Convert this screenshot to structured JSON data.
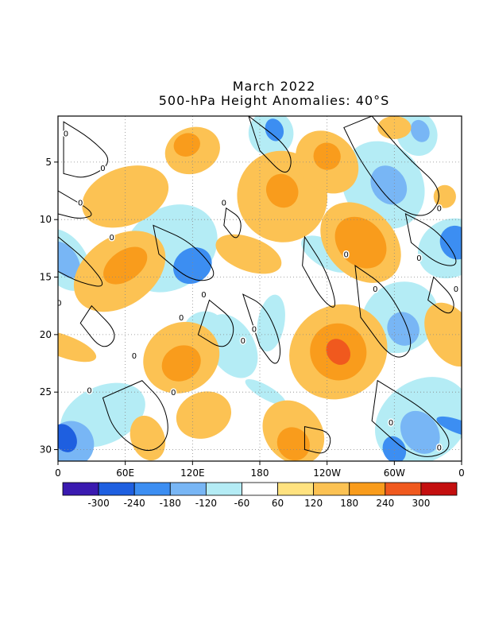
{
  "chart_data": {
    "type": "heatmap",
    "title": "March 2022",
    "subtitle": "500-hPa Height Anomalies: 40°S",
    "xlabel": "",
    "ylabel": "",
    "x_ticks": [
      "0",
      "60E",
      "120E",
      "180",
      "120W",
      "60W",
      "0"
    ],
    "y_ticks": [
      "5",
      "10",
      "15",
      "20",
      "25",
      "30"
    ],
    "xlim": [
      0,
      360
    ],
    "ylim": [
      1,
      31
    ],
    "y_inverted": true,
    "grid": true,
    "contour_label": "0",
    "colorbar": {
      "labels": [
        "-300",
        "-240",
        "-180",
        "-120",
        "-60",
        "60",
        "120",
        "180",
        "240",
        "300"
      ],
      "colors": [
        "#3a1ab0",
        "#1e5fe0",
        "#3c8ef2",
        "#78b6f5",
        "#b4ecf5",
        "#ffffff",
        "#ffe27f",
        "#fcc253",
        "#f99c1c",
        "#f0591e",
        "#c40f0f"
      ]
    },
    "bands": [
      {
        "level": -120,
        "x": 100,
        "y": 12.5,
        "dx": 45,
        "dy": 3.5,
        "tilt": -35
      },
      {
        "level": -240,
        "x": 120,
        "y": 14,
        "dx": 18,
        "dy": 1.5,
        "tilt": -35
      },
      {
        "level": -120,
        "x": 350,
        "y": 12.5,
        "dx": 30,
        "dy": 2.5,
        "tilt": -30
      },
      {
        "level": -240,
        "x": 355,
        "y": 12,
        "dx": 14,
        "dy": 1.5,
        "tilt": -30
      },
      {
        "level": -120,
        "x": 5,
        "y": 13.5,
        "dx": 20,
        "dy": 3,
        "tilt": -35
      },
      {
        "level": -180,
        "x": 6,
        "y": 13.5,
        "dx": 11,
        "dy": 1.8,
        "tilt": -35
      },
      {
        "level": -120,
        "x": 190,
        "y": 2.5,
        "dx": 20,
        "dy": 2,
        "tilt": -20
      },
      {
        "level": -240,
        "x": 193,
        "y": 2.2,
        "dx": 8,
        "dy": 1,
        "tilt": -20
      },
      {
        "level": -120,
        "x": 290,
        "y": 7,
        "dx": 35,
        "dy": 4,
        "tilt": -35
      },
      {
        "level": -180,
        "x": 295,
        "y": 7,
        "dx": 15,
        "dy": 1.8,
        "tilt": -35
      },
      {
        "level": -120,
        "x": 320,
        "y": 2.5,
        "dx": 18,
        "dy": 2,
        "tilt": -25
      },
      {
        "level": -180,
        "x": 323,
        "y": 2.3,
        "dx": 8,
        "dy": 1,
        "tilt": -25
      },
      {
        "level": -120,
        "x": 305,
        "y": 18.5,
        "dx": 35,
        "dy": 3,
        "tilt": -30
      },
      {
        "level": -180,
        "x": 308,
        "y": 19.5,
        "dx": 14,
        "dy": 1.5,
        "tilt": -30
      },
      {
        "level": -120,
        "x": 325,
        "y": 27.5,
        "dx": 45,
        "dy": 3.5,
        "tilt": -35
      },
      {
        "level": -180,
        "x": 323,
        "y": 28.5,
        "dx": 16,
        "dy": 2,
        "tilt": -35
      },
      {
        "level": -240,
        "x": 300,
        "y": 30,
        "dx": 10,
        "dy": 1.2,
        "tilt": -25
      },
      {
        "level": -240,
        "x": 357,
        "y": 28,
        "dx": 6,
        "dy": 2,
        "tilt": -70
      },
      {
        "level": -120,
        "x": 40,
        "y": 27,
        "dx": 40,
        "dy": 2.5,
        "tilt": -25
      },
      {
        "level": -180,
        "x": 12,
        "y": 29.5,
        "dx": 20,
        "dy": 2,
        "tilt": -30
      },
      {
        "level": -300,
        "x": 6,
        "y": 29,
        "dx": 10,
        "dy": 1.3,
        "tilt": -30
      },
      {
        "level": -120,
        "x": 130,
        "y": 19.5,
        "dx": 18,
        "dy": 1.5,
        "tilt": -15
      },
      {
        "level": -120,
        "x": 155,
        "y": 21,
        "dx": 20,
        "dy": 3,
        "tilt": -30
      },
      {
        "level": -120,
        "x": 190,
        "y": 19,
        "dx": 12,
        "dy": 2.5,
        "tilt": 10
      },
      {
        "level": -120,
        "x": 240,
        "y": 13,
        "dx": 12,
        "dy": 2.5,
        "tilt": -60
      },
      {
        "level": -120,
        "x": 185,
        "y": 25,
        "dx": 6,
        "dy": 2,
        "tilt": -60
      },
      {
        "level": 120,
        "x": 60,
        "y": 8,
        "dx": 40,
        "dy": 2.5,
        "tilt": -20
      },
      {
        "level": 120,
        "x": 120,
        "y": 4,
        "dx": 25,
        "dy": 2,
        "tilt": -20
      },
      {
        "level": 180,
        "x": 115,
        "y": 3.5,
        "dx": 12,
        "dy": 1,
        "tilt": -20
      },
      {
        "level": 120,
        "x": 55,
        "y": 14.5,
        "dx": 45,
        "dy": 3,
        "tilt": -35
      },
      {
        "level": 180,
        "x": 60,
        "y": 14,
        "dx": 22,
        "dy": 1.3,
        "tilt": -35
      },
      {
        "level": 120,
        "x": 200,
        "y": 8,
        "dx": 40,
        "dy": 4,
        "tilt": -30
      },
      {
        "level": 180,
        "x": 200,
        "y": 7.5,
        "dx": 14,
        "dy": 1.5,
        "tilt": -30
      },
      {
        "level": 120,
        "x": 240,
        "y": 5,
        "dx": 25,
        "dy": 3,
        "tilt": -45
      },
      {
        "level": 180,
        "x": 240,
        "y": 4.5,
        "dx": 12,
        "dy": 1.2,
        "tilt": -45
      },
      {
        "level": 120,
        "x": 270,
        "y": 12,
        "dx": 30,
        "dy": 4,
        "tilt": -45
      },
      {
        "level": 180,
        "x": 270,
        "y": 12,
        "dx": 20,
        "dy": 2.5,
        "tilt": -45
      },
      {
        "level": 120,
        "x": 250,
        "y": 21.5,
        "dx": 45,
        "dy": 4,
        "tilt": -35
      },
      {
        "level": 180,
        "x": 250,
        "y": 21.5,
        "dx": 25,
        "dy": 2.5,
        "tilt": -35
      },
      {
        "level": 240,
        "x": 250,
        "y": 21.5,
        "dx": 10,
        "dy": 1.2,
        "tilt": -35
      },
      {
        "level": 120,
        "x": 110,
        "y": 22,
        "dx": 35,
        "dy": 3,
        "tilt": -30
      },
      {
        "level": 180,
        "x": 110,
        "y": 22.5,
        "dx": 18,
        "dy": 1.5,
        "tilt": -30
      },
      {
        "level": 120,
        "x": 210,
        "y": 28.5,
        "dx": 25,
        "dy": 3,
        "tilt": -40
      },
      {
        "level": 180,
        "x": 210,
        "y": 29.5,
        "dx": 14,
        "dy": 1.5,
        "tilt": -40
      },
      {
        "level": 120,
        "x": 130,
        "y": 27,
        "dx": 25,
        "dy": 2,
        "tilt": -20
      },
      {
        "level": 120,
        "x": 170,
        "y": 13,
        "dx": 15,
        "dy": 3,
        "tilt": -70
      },
      {
        "level": 120,
        "x": 80,
        "y": 29,
        "dx": 15,
        "dy": 2,
        "tilt": -20
      },
      {
        "level": 120,
        "x": 350,
        "y": 20,
        "dx": 20,
        "dy": 3,
        "tilt": -30
      },
      {
        "level": 120,
        "x": 5,
        "y": 21,
        "dx": 10,
        "dy": 3,
        "tilt": -70
      },
      {
        "level": 120,
        "x": 300,
        "y": 2,
        "dx": 15,
        "dy": 1,
        "tilt": 0
      },
      {
        "level": 120,
        "x": 345,
        "y": 8,
        "dx": 10,
        "dy": 1,
        "tilt": 0
      }
    ],
    "contours": [
      [
        [
          5,
          1.5
        ],
        [
          30,
          3
        ],
        [
          50,
          5
        ],
        [
          25,
          6.5
        ],
        [
          5,
          6
        ]
      ],
      [
        [
          0,
          7.5
        ],
        [
          35,
          9.5
        ],
        [
          20,
          10
        ],
        [
          0,
          9.5
        ]
      ],
      [
        [
          0,
          11.5
        ],
        [
          25,
          13.5
        ],
        [
          45,
          16
        ],
        [
          20,
          15.5
        ],
        [
          0,
          14.5
        ]
      ],
      [
        [
          85,
          10.5
        ],
        [
          120,
          12
        ],
        [
          145,
          15
        ],
        [
          120,
          15.5
        ],
        [
          90,
          13
        ]
      ],
      [
        [
          30,
          17.5
        ],
        [
          55,
          20
        ],
        [
          40,
          21.5
        ],
        [
          20,
          19
        ]
      ],
      [
        [
          75,
          24
        ],
        [
          95,
          26
        ],
        [
          100,
          29
        ],
        [
          80,
          30.5
        ],
        [
          50,
          28.5
        ],
        [
          40,
          25.5
        ]
      ],
      [
        [
          135,
          17
        ],
        [
          160,
          19
        ],
        [
          150,
          21.5
        ],
        [
          125,
          20
        ]
      ],
      [
        [
          165,
          16.5
        ],
        [
          185,
          17.5
        ],
        [
          200,
          21
        ],
        [
          195,
          23
        ],
        [
          180,
          21
        ]
      ],
      [
        [
          150,
          9
        ],
        [
          165,
          10
        ],
        [
          160,
          12
        ],
        [
          148,
          10.5
        ]
      ],
      [
        [
          280,
          1
        ],
        [
          310,
          4.5
        ],
        [
          345,
          7.5
        ],
        [
          330,
          10
        ],
        [
          300,
          9
        ],
        [
          270,
          5
        ],
        [
          255,
          2
        ]
      ],
      [
        [
          170,
          1
        ],
        [
          210,
          4
        ],
        [
          205,
          6.5
        ],
        [
          180,
          4
        ]
      ],
      [
        [
          220,
          11.5
        ],
        [
          240,
          14.5
        ],
        [
          250,
          18
        ],
        [
          235,
          17
        ],
        [
          218,
          14
        ]
      ],
      [
        [
          265,
          14
        ],
        [
          295,
          16
        ],
        [
          320,
          21
        ],
        [
          300,
          22.5
        ],
        [
          270,
          18.5
        ]
      ],
      [
        [
          285,
          24
        ],
        [
          335,
          27
        ],
        [
          355,
          30
        ],
        [
          320,
          31
        ],
        [
          280,
          27.5
        ]
      ],
      [
        [
          220,
          28
        ],
        [
          245,
          28.5
        ],
        [
          240,
          30.5
        ],
        [
          220,
          30
        ]
      ],
      [
        [
          310,
          9.5
        ],
        [
          340,
          11
        ],
        [
          360,
          14
        ],
        [
          340,
          14
        ],
        [
          315,
          12
        ]
      ],
      [
        [
          335,
          15
        ],
        [
          355,
          17
        ],
        [
          350,
          18.5
        ],
        [
          330,
          17
        ]
      ]
    ],
    "contour_labels": [
      {
        "x": 7,
        "y": 2.5
      },
      {
        "x": 40,
        "y": 5.5
      },
      {
        "x": 20,
        "y": 8.5
      },
      {
        "x": 48,
        "y": 11.5
      },
      {
        "x": 130,
        "y": 16.5
      },
      {
        "x": 110,
        "y": 18.5
      },
      {
        "x": 175,
        "y": 19.5
      },
      {
        "x": 165,
        "y": 20.5
      },
      {
        "x": 68,
        "y": 21.8
      },
      {
        "x": 1,
        "y": 17.2
      },
      {
        "x": 28,
        "y": 24.8
      },
      {
        "x": 103,
        "y": 25
      },
      {
        "x": 148,
        "y": 8.5
      },
      {
        "x": 283,
        "y": 16
      },
      {
        "x": 355,
        "y": 16
      },
      {
        "x": 340,
        "y": 9
      },
      {
        "x": 322,
        "y": 13.3
      },
      {
        "x": 297,
        "y": 27.6
      },
      {
        "x": 340,
        "y": 29.8
      },
      {
        "x": 257,
        "y": 13
      }
    ]
  }
}
